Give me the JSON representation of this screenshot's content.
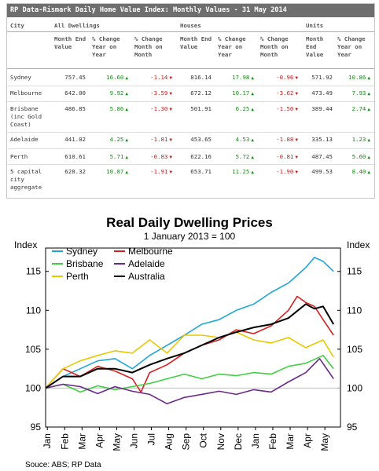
{
  "table": {
    "title": "RP Data-Rismark Daily Home Value Index: Monthly Values - 31 May 2014",
    "city_header": "City",
    "groups": [
      "All Dwellings",
      "Houses",
      "Units"
    ],
    "subheaders": [
      "Month End Value",
      "% Change Year on Year",
      "% Change Month on Month"
    ],
    "rows": [
      {
        "city": "Sydney",
        "values": [
          "757.45",
          "16.60",
          "-1.14",
          "816.14",
          "17.98",
          "-0.96",
          "571.92",
          "10.86"
        ]
      },
      {
        "city": "Melbourne",
        "values": [
          "642.00",
          "9.92",
          "-3.59",
          "672.12",
          "10.17",
          "-3.62",
          "473.49",
          "7.93"
        ]
      },
      {
        "city": "Brisbane (inc Gold Coast)",
        "values": [
          "486.85",
          "5.86",
          "-1.30",
          "501.91",
          "6.25",
          "-1.50",
          "389.44",
          "2.74"
        ]
      },
      {
        "city": "Adelaide",
        "values": [
          "441.02",
          "4.25",
          "-1.81",
          "453.65",
          "4.53",
          "-1.88",
          "335.13",
          "1.23"
        ]
      },
      {
        "city": "Perth",
        "values": [
          "610.61",
          "5.71",
          "-0.83",
          "622.16",
          "5.72",
          "-0.81",
          "487.45",
          "5.60"
        ]
      },
      {
        "city": "5 capital city aggregate",
        "values": [
          "628.32",
          "10.87",
          "-1.91",
          "653.71",
          "11.25",
          "-1.90",
          "499.53",
          "8.40"
        ]
      }
    ],
    "up_icon": "▲",
    "down_icon": "▼",
    "colors": {
      "header_bg": "#6e6e6e",
      "positive": "#1a8a1a",
      "negative": "#c02020"
    }
  },
  "chart_data": {
    "type": "line",
    "title": "Real Daily Dwelling Prices",
    "subtitle": "1 January  2013 = 100",
    "ylabel_left": "Index",
    "ylabel_right": "Index",
    "ylim": [
      95,
      118
    ],
    "yticks": [
      95,
      100,
      105,
      110,
      115
    ],
    "x_tick_labels": [
      "Jan",
      "Feb",
      "Mar",
      "Apr",
      "May",
      "Jun",
      "Jul",
      "Aug",
      "Sep",
      "Oct",
      "Nov",
      "Dec",
      "Jan",
      "Feb",
      "Mar",
      "Apr",
      "May"
    ],
    "x_range": [
      0,
      17
    ],
    "grid": false,
    "legend": "top-left, inside plot",
    "source": "Souce: ABS; RP Data",
    "series": [
      {
        "name": "Sydney",
        "color": "#1fa6d6",
        "x": [
          0,
          1,
          2,
          3,
          4,
          5,
          6,
          7,
          8,
          9,
          10,
          11,
          12,
          13,
          14,
          15,
          15.5,
          16,
          16.6
        ],
        "y": [
          100,
          101.5,
          102.5,
          103.5,
          103.8,
          102.5,
          104.2,
          105.5,
          106.8,
          108.2,
          108.8,
          110,
          110.8,
          112.3,
          113.5,
          115.5,
          116.8,
          116.3,
          115
        ]
      },
      {
        "name": "Melbourne",
        "color": "#d42020",
        "x": [
          0,
          1,
          2,
          3,
          4,
          5,
          5.5,
          6,
          7,
          8,
          9,
          10,
          11,
          12,
          13,
          14,
          14.5,
          15,
          15.5,
          16,
          16.6
        ],
        "y": [
          100,
          102.5,
          101.5,
          102.8,
          102.2,
          101.2,
          99.5,
          102,
          103,
          104.5,
          105.5,
          106.2,
          107.5,
          107,
          108,
          110,
          111.8,
          111,
          110.5,
          108.8,
          106.8
        ]
      },
      {
        "name": "Brisbane",
        "color": "#3fcf3f",
        "x": [
          0,
          1,
          2,
          3,
          4,
          5,
          6,
          7,
          8,
          9,
          10,
          11,
          12,
          13,
          14,
          15,
          16,
          16.6
        ],
        "y": [
          100,
          100.5,
          99.5,
          100.3,
          99.8,
          100.2,
          100.6,
          101.2,
          101.8,
          101.2,
          101.8,
          101.6,
          102,
          101.8,
          102.8,
          103.2,
          104.2,
          102.5
        ]
      },
      {
        "name": "Adelaide",
        "color": "#6a2a8a",
        "x": [
          0,
          1,
          2,
          3,
          4,
          5,
          6,
          7,
          8,
          9,
          10,
          11,
          12,
          13,
          14,
          15,
          15.8,
          16.6
        ],
        "y": [
          100,
          100.5,
          100.2,
          99.3,
          100.2,
          99.6,
          99.2,
          98,
          98.8,
          99.2,
          99.6,
          99.2,
          99.8,
          99.5,
          100.8,
          102,
          103.8,
          101.2
        ]
      },
      {
        "name": "Perth",
        "color": "#e8c800",
        "x": [
          0,
          1,
          2,
          3,
          4,
          5,
          6,
          7,
          8,
          9,
          10,
          11,
          12,
          13,
          14,
          15,
          16,
          16.6
        ],
        "y": [
          100,
          102.5,
          103.5,
          104.2,
          104.8,
          104.5,
          106.2,
          104.5,
          106.8,
          106.8,
          106.5,
          107.2,
          106.2,
          105.8,
          106.5,
          105.2,
          106.2,
          104
        ]
      },
      {
        "name": "Australia",
        "color": "#000000",
        "x": [
          0,
          1,
          2,
          3,
          4,
          5,
          6,
          7,
          8,
          9,
          10,
          11,
          12,
          13,
          14,
          15,
          15.5,
          16,
          16.6
        ],
        "y": [
          100,
          101.5,
          101.5,
          102.5,
          102.5,
          102,
          103,
          103.8,
          104.5,
          105.5,
          106.5,
          107.2,
          107.8,
          108.2,
          109,
          110.8,
          110.2,
          110.5,
          108.2
        ]
      }
    ]
  }
}
